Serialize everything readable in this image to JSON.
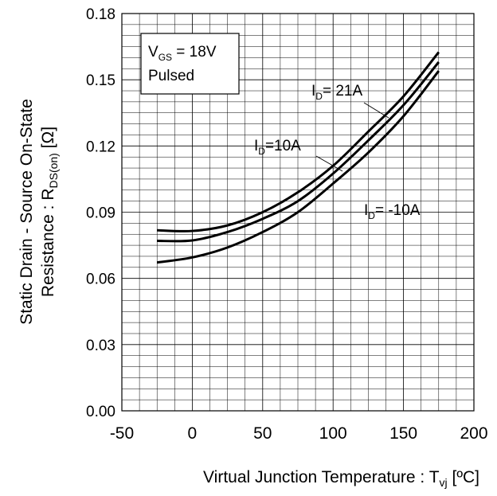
{
  "chart_data": {
    "type": "line",
    "xlabel": "Virtual Junction Temperature : T",
    "xlabel_sub": "vj",
    "xlabel_unit": " [ºC]",
    "ylabel_line1": "Static Drain - Source On-State",
    "ylabel_line2": "Resistance : R",
    "ylabel_sub": "DS(on)",
    "ylabel_unit": " [Ω]",
    "xlim": [
      -50,
      200
    ],
    "ylim": [
      0,
      0.18
    ],
    "xticks": [
      -50,
      0,
      50,
      100,
      150,
      200
    ],
    "xtick_labels": [
      "-50",
      "0",
      "50",
      "100",
      "150",
      "200"
    ],
    "yticks": [
      0,
      0.03,
      0.06,
      0.09,
      0.12,
      0.15,
      0.18
    ],
    "ytick_labels": [
      "0.00",
      "0.03",
      "0.06",
      "0.09",
      "0.12",
      "0.15",
      "0.18"
    ],
    "grid": true,
    "condition": {
      "line1_main": "V",
      "line1_sub": "GS",
      "line1_rest": " = 18V",
      "line2": "Pulsed"
    },
    "series": [
      {
        "name_main": "I",
        "name_sub": "D",
        "name_rest": "= 21A",
        "x": [
          -25,
          0,
          25,
          50,
          75,
          100,
          125,
          150,
          175
        ],
        "y": [
          0.0818,
          0.0815,
          0.084,
          0.09,
          0.099,
          0.111,
          0.1265,
          0.1425,
          0.1625
        ]
      },
      {
        "name_main": "I",
        "name_sub": "D",
        "name_rest": "=10A",
        "x": [
          -25,
          0,
          25,
          50,
          75,
          100,
          125,
          150,
          175
        ],
        "y": [
          0.077,
          0.0772,
          0.081,
          0.087,
          0.095,
          0.1075,
          0.1225,
          0.1385,
          0.158
        ]
      },
      {
        "name_main": "I",
        "name_sub": "D",
        "name_rest": "= -10A",
        "x": [
          -25,
          0,
          25,
          50,
          75,
          100,
          125,
          150,
          175
        ],
        "y": [
          0.0672,
          0.0695,
          0.074,
          0.081,
          0.09,
          0.103,
          0.117,
          0.1335,
          0.154
        ]
      }
    ]
  }
}
